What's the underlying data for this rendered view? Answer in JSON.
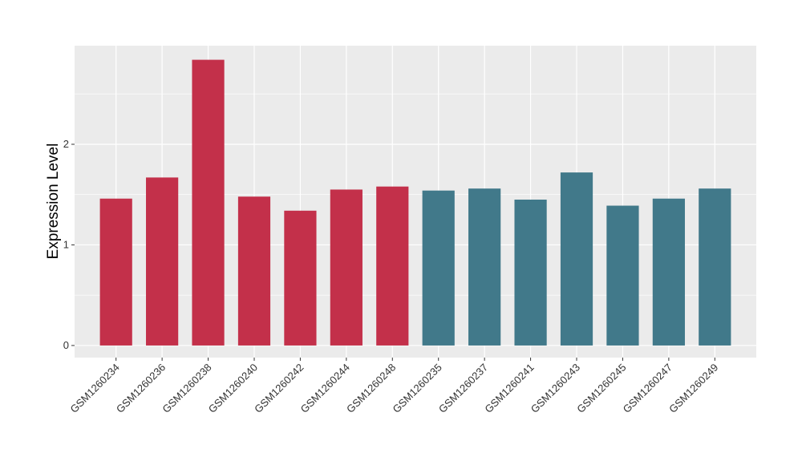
{
  "chart_data": {
    "type": "bar",
    "title": "",
    "xlabel": "",
    "ylabel": "Expression Level",
    "ylim": [
      -0.12,
      2.98
    ],
    "yticks": [
      0,
      1,
      2
    ],
    "grid": true,
    "legend": "none",
    "colors": {
      "group_a": "#C3304A",
      "group_b": "#41798A",
      "panel_bg": "#EBEBEB",
      "grid": "#FFFFFF"
    },
    "categories": [
      "GSM1260234",
      "GSM1260236",
      "GSM1260238",
      "GSM1260240",
      "GSM1260242",
      "GSM1260244",
      "GSM1260248",
      "GSM1260235",
      "GSM1260237",
      "GSM1260241",
      "GSM1260243",
      "GSM1260245",
      "GSM1260247",
      "GSM1260249"
    ],
    "values": [
      1.46,
      1.67,
      2.84,
      1.48,
      1.34,
      1.55,
      1.58,
      1.54,
      1.56,
      1.45,
      1.72,
      1.39,
      1.46,
      1.56
    ],
    "groups": [
      "a",
      "a",
      "a",
      "a",
      "a",
      "a",
      "a",
      "b",
      "b",
      "b",
      "b",
      "b",
      "b",
      "b"
    ]
  }
}
